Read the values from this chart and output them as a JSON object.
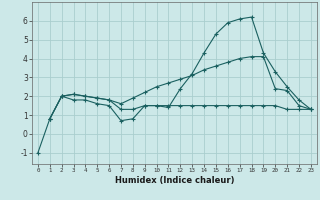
{
  "xlabel": "Humidex (Indice chaleur)",
  "background_color": "#cce8e8",
  "grid_color": "#aacece",
  "line_color": "#1a6060",
  "x_ticks": [
    0,
    1,
    2,
    3,
    4,
    5,
    6,
    7,
    8,
    9,
    10,
    11,
    12,
    13,
    14,
    15,
    16,
    17,
    18,
    19,
    20,
    21,
    22,
    23
  ],
  "ylim": [
    -1.6,
    7.0
  ],
  "xlim": [
    -0.5,
    23.5
  ],
  "yticks": [
    -1,
    0,
    1,
    2,
    3,
    4,
    5,
    6
  ],
  "line1_x": [
    0,
    1,
    2,
    3,
    4,
    5,
    6,
    7,
    8,
    9,
    10,
    11,
    12,
    13,
    14,
    15,
    16,
    17,
    18,
    19,
    20,
    21,
    22,
    23
  ],
  "line1_y": [
    -1.0,
    0.8,
    2.0,
    1.8,
    1.8,
    1.6,
    1.5,
    0.7,
    0.8,
    1.5,
    1.5,
    1.4,
    2.4,
    3.2,
    4.3,
    5.3,
    5.9,
    6.1,
    6.2,
    4.3,
    3.3,
    2.5,
    1.8,
    1.3
  ],
  "line2_x": [
    1,
    2,
    3,
    4,
    5,
    6,
    7,
    8,
    9,
    10,
    11,
    12,
    13,
    14,
    15,
    16,
    17,
    18,
    19,
    20,
    21,
    22,
    23
  ],
  "line2_y": [
    0.8,
    2.0,
    2.1,
    2.0,
    1.9,
    1.8,
    1.6,
    1.9,
    2.2,
    2.5,
    2.7,
    2.9,
    3.1,
    3.4,
    3.6,
    3.8,
    4.0,
    4.1,
    4.1,
    2.4,
    2.3,
    1.5,
    1.3
  ],
  "line3_x": [
    1,
    2,
    3,
    4,
    5,
    6,
    7,
    8,
    9,
    10,
    11,
    12,
    13,
    14,
    15,
    16,
    17,
    18,
    19,
    20,
    21,
    22,
    23
  ],
  "line3_y": [
    0.8,
    2.0,
    2.1,
    2.0,
    1.9,
    1.8,
    1.3,
    1.3,
    1.5,
    1.5,
    1.5,
    1.5,
    1.5,
    1.5,
    1.5,
    1.5,
    1.5,
    1.5,
    1.5,
    1.5,
    1.3,
    1.3,
    1.3
  ]
}
